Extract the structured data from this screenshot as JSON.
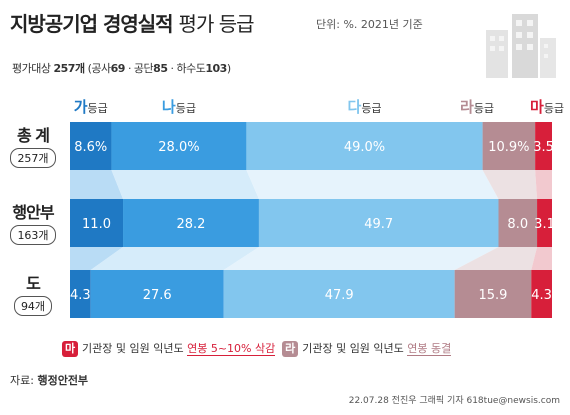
{
  "title": {
    "main": "지방공기업 경영실적",
    "sub": "평가 등급"
  },
  "unit": "단위: %. 2021년 기준",
  "evaluation": {
    "label": "평가대상",
    "total": "257개",
    "detail_open": "(공사",
    "gongsa": "69",
    "sep1": "· 공단",
    "gongdan": "85",
    "sep2": "· 하수도",
    "hasudo": "103",
    "detail_close": ")"
  },
  "grades": [
    {
      "big": "가",
      "small": "등급",
      "color": "#1f79c4"
    },
    {
      "big": "나",
      "small": "등급",
      "color": "#3a9ce0"
    },
    {
      "big": "다",
      "small": "등급",
      "color": "#82c6ee"
    },
    {
      "big": "라",
      "small": "등급",
      "color": "#b58c93"
    },
    {
      "big": "마",
      "small": "등급",
      "color": "#d71f3a"
    }
  ],
  "rows": [
    {
      "name": "총 계",
      "count": "257개"
    },
    {
      "name": "행안부",
      "count": "163개"
    },
    {
      "name": "도",
      "count": "94개"
    }
  ],
  "chart_data": {
    "type": "bar",
    "orientation": "horizontal",
    "stacked": true,
    "categories": [
      "총 계",
      "행안부",
      "도"
    ],
    "series": [
      {
        "name": "가등급",
        "values": [
          8.6,
          11.0,
          4.3
        ],
        "labels": [
          "8.6%",
          "11.0",
          "4.3"
        ]
      },
      {
        "name": "나등급",
        "values": [
          28.0,
          28.2,
          27.6
        ],
        "labels": [
          "28.0%",
          "28.2",
          "27.6"
        ]
      },
      {
        "name": "다등급",
        "values": [
          49.0,
          49.7,
          47.9
        ],
        "labels": [
          "49.0%",
          "49.7",
          "47.9"
        ]
      },
      {
        "name": "라등급",
        "values": [
          10.9,
          8.0,
          15.9
        ],
        "labels": [
          "10.9%",
          "8.0",
          "15.9"
        ]
      },
      {
        "name": "마등급",
        "values": [
          3.5,
          3.1,
          4.3
        ],
        "labels": [
          "3.5",
          "3.1",
          "4.3"
        ]
      }
    ],
    "colors": [
      "#1f79c4",
      "#3a9ce0",
      "#82c6ee",
      "#b58c93",
      "#d71f3a"
    ],
    "connector_colors": [
      "#b9dcf5",
      "#d6ecfa",
      "#e6f3fc",
      "#ece1e3",
      "#f2c9cf"
    ]
  },
  "legend": {
    "ma_badge": "마",
    "ma_text": "기관장 및 임원 익년도",
    "ma_highlight": "연봉 5~10% 삭감",
    "ra_badge": "라",
    "ra_text": "기관장 및 임원 익년도",
    "ra_highlight": "연봉 동결"
  },
  "source": {
    "label": "자료:",
    "name": "행정안전부"
  },
  "credit": "22.07.28 전진우 그래픽 기자 618tue@newsis.com"
}
